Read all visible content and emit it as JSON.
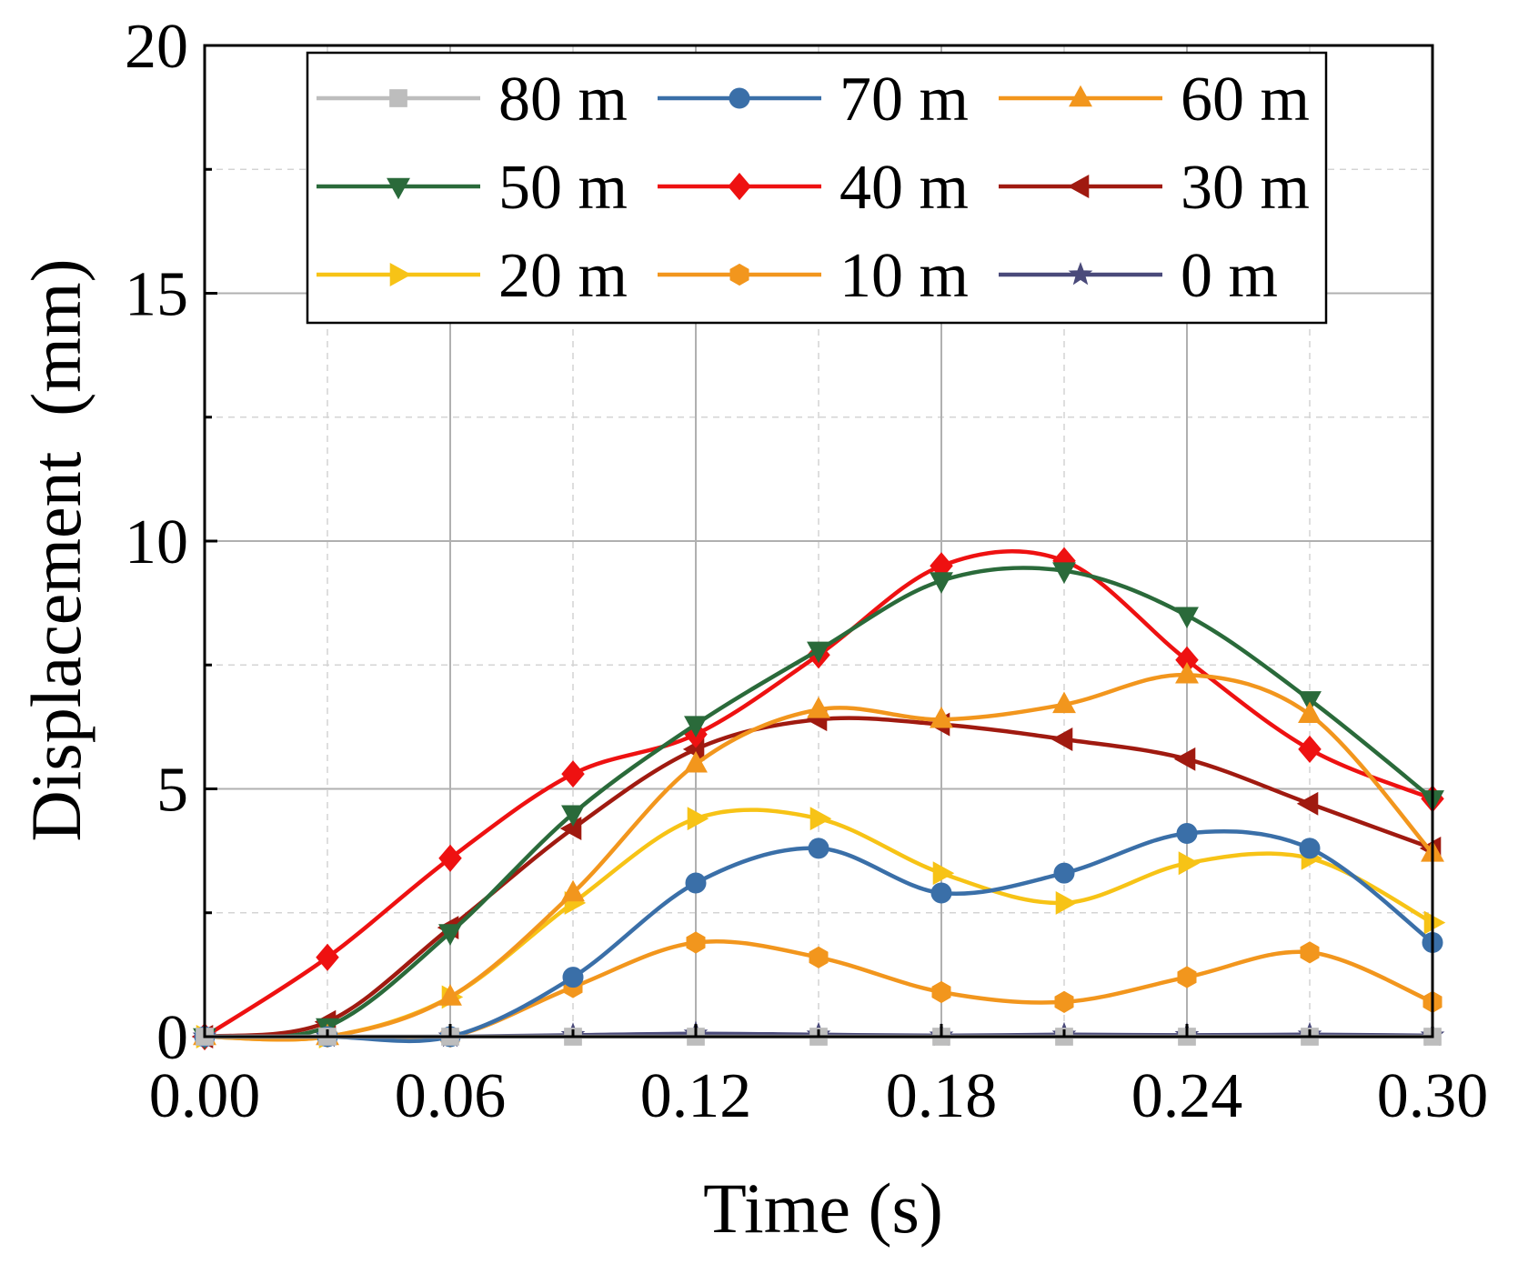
{
  "chart_data": {
    "type": "line",
    "title": "",
    "xlabel": "Time (s)",
    "ylabel": "Displacement  (mm)",
    "xlim": [
      0,
      0.3
    ],
    "ylim": [
      0,
      20
    ],
    "x_ticks": [
      0.0,
      0.06,
      0.12,
      0.18,
      0.24,
      0.3
    ],
    "x_tick_labels": [
      "0.00",
      "0.06",
      "0.12",
      "0.18",
      "0.24",
      "0.30"
    ],
    "y_ticks": [
      0,
      5,
      10,
      15,
      20
    ],
    "y_tick_labels": [
      "0",
      "5",
      "10",
      "15",
      "20"
    ],
    "minor_x": [
      0.03,
      0.09,
      0.15,
      0.21,
      0.27
    ],
    "minor_y": [
      2.5,
      7.5,
      12.5,
      17.5
    ],
    "grid": true,
    "legend_position": "top-right",
    "legend_columns": 3,
    "x": [
      0,
      0.03,
      0.06,
      0.09,
      0.12,
      0.15,
      0.18,
      0.21,
      0.24,
      0.27,
      0.3
    ],
    "series": [
      {
        "name": "80 m",
        "color": "#bdbdbd",
        "marker": "square",
        "values": [
          0,
          0,
          0,
          0,
          0,
          0,
          0,
          0,
          0,
          0,
          0
        ]
      },
      {
        "name": "70 m",
        "color": "#3a6fa8",
        "marker": "circle",
        "values": [
          0,
          0,
          0,
          1.2,
          3.1,
          3.8,
          2.9,
          3.3,
          4.1,
          3.8,
          1.9
        ]
      },
      {
        "name": "60 m",
        "color": "#f2961d",
        "marker": "triangle-up",
        "values": [
          0,
          0,
          0.8,
          2.9,
          5.5,
          6.6,
          6.4,
          6.7,
          7.3,
          6.5,
          3.7
        ]
      },
      {
        "name": "50 m",
        "color": "#2a6a3a",
        "marker": "triangle-down",
        "values": [
          0,
          0.2,
          2.1,
          4.5,
          6.3,
          7.8,
          9.2,
          9.4,
          8.5,
          6.8,
          4.8
        ]
      },
      {
        "name": "40 m",
        "color": "#ee1111",
        "marker": "diamond",
        "values": [
          0,
          1.6,
          3.6,
          5.3,
          6.1,
          7.7,
          9.5,
          9.6,
          7.6,
          5.8,
          4.8
        ]
      },
      {
        "name": "30 m",
        "color": "#a01a10",
        "marker": "triangle-left",
        "values": [
          0,
          0.3,
          2.2,
          4.2,
          5.8,
          6.4,
          6.3,
          6.0,
          5.6,
          4.7,
          3.8
        ]
      },
      {
        "name": "20 m",
        "color": "#f7c316",
        "marker": "triangle-right",
        "values": [
          0,
          0,
          0.8,
          2.7,
          4.4,
          4.4,
          3.3,
          2.7,
          3.5,
          3.6,
          2.3
        ]
      },
      {
        "name": "10 m",
        "color": "#f2961d",
        "marker": "hexagon",
        "values": [
          0,
          0,
          0,
          1.0,
          1.9,
          1.6,
          0.9,
          0.7,
          1.2,
          1.7,
          0.7
        ]
      },
      {
        "name": "0 m",
        "color": "#4a4a7a",
        "marker": "star",
        "values": [
          0,
          0,
          0,
          0.03,
          0.06,
          0.04,
          0.02,
          0.04,
          0.03,
          0.04,
          0.02
        ]
      }
    ]
  }
}
